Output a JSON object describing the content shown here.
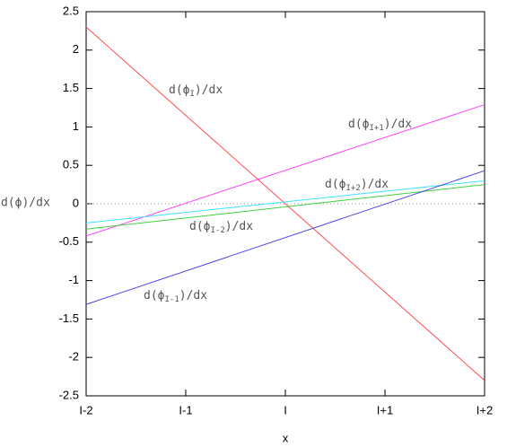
{
  "chart_data": {
    "type": "line",
    "xlabel": "x",
    "ylabel": "d(ϕ)/dx",
    "xlim": [
      -2,
      2
    ],
    "ylim": [
      -2.5,
      2.5
    ],
    "xticks": [
      {
        "value": -2,
        "label": "I-2"
      },
      {
        "value": -1,
        "label": "I-1"
      },
      {
        "value": 0,
        "label": "I"
      },
      {
        "value": 1,
        "label": "I+1"
      },
      {
        "value": 2,
        "label": "I+2"
      }
    ],
    "yticks": [
      -2.5,
      -2,
      -1.5,
      -1,
      -0.5,
      0,
      0.5,
      1,
      1.5,
      2,
      2.5
    ],
    "zero_line": true,
    "series": [
      {
        "label": {
          "pre": "d(ϕ",
          "sub": "I",
          "post": ")/dx"
        },
        "color": "#ff4848",
        "x": [
          -2,
          2
        ],
        "values": [
          2.3,
          -2.3
        ]
      },
      {
        "label": {
          "pre": "d(ϕ",
          "sub": "I+1",
          "post": ")/dx"
        },
        "color": "#ff40ff",
        "x": [
          -2,
          2
        ],
        "values": [
          -0.42,
          1.29
        ]
      },
      {
        "label": {
          "pre": "d(ϕ",
          "sub": "I+2",
          "post": ")/dx"
        },
        "color": "#40e0ff",
        "x": [
          -2,
          2
        ],
        "values": [
          -0.25,
          0.3
        ]
      },
      {
        "label": {
          "pre": "d(ϕ",
          "sub": "I-2",
          "post": ")/dx"
        },
        "color": "#40d040",
        "x": [
          -2,
          2
        ],
        "values": [
          -0.33,
          0.25
        ]
      },
      {
        "label": {
          "pre": "d(ϕ",
          "sub": "I-1",
          "post": ")/dx"
        },
        "color": "#4848e0",
        "x": [
          -2,
          2
        ],
        "values": [
          -1.31,
          0.43
        ]
      }
    ]
  }
}
